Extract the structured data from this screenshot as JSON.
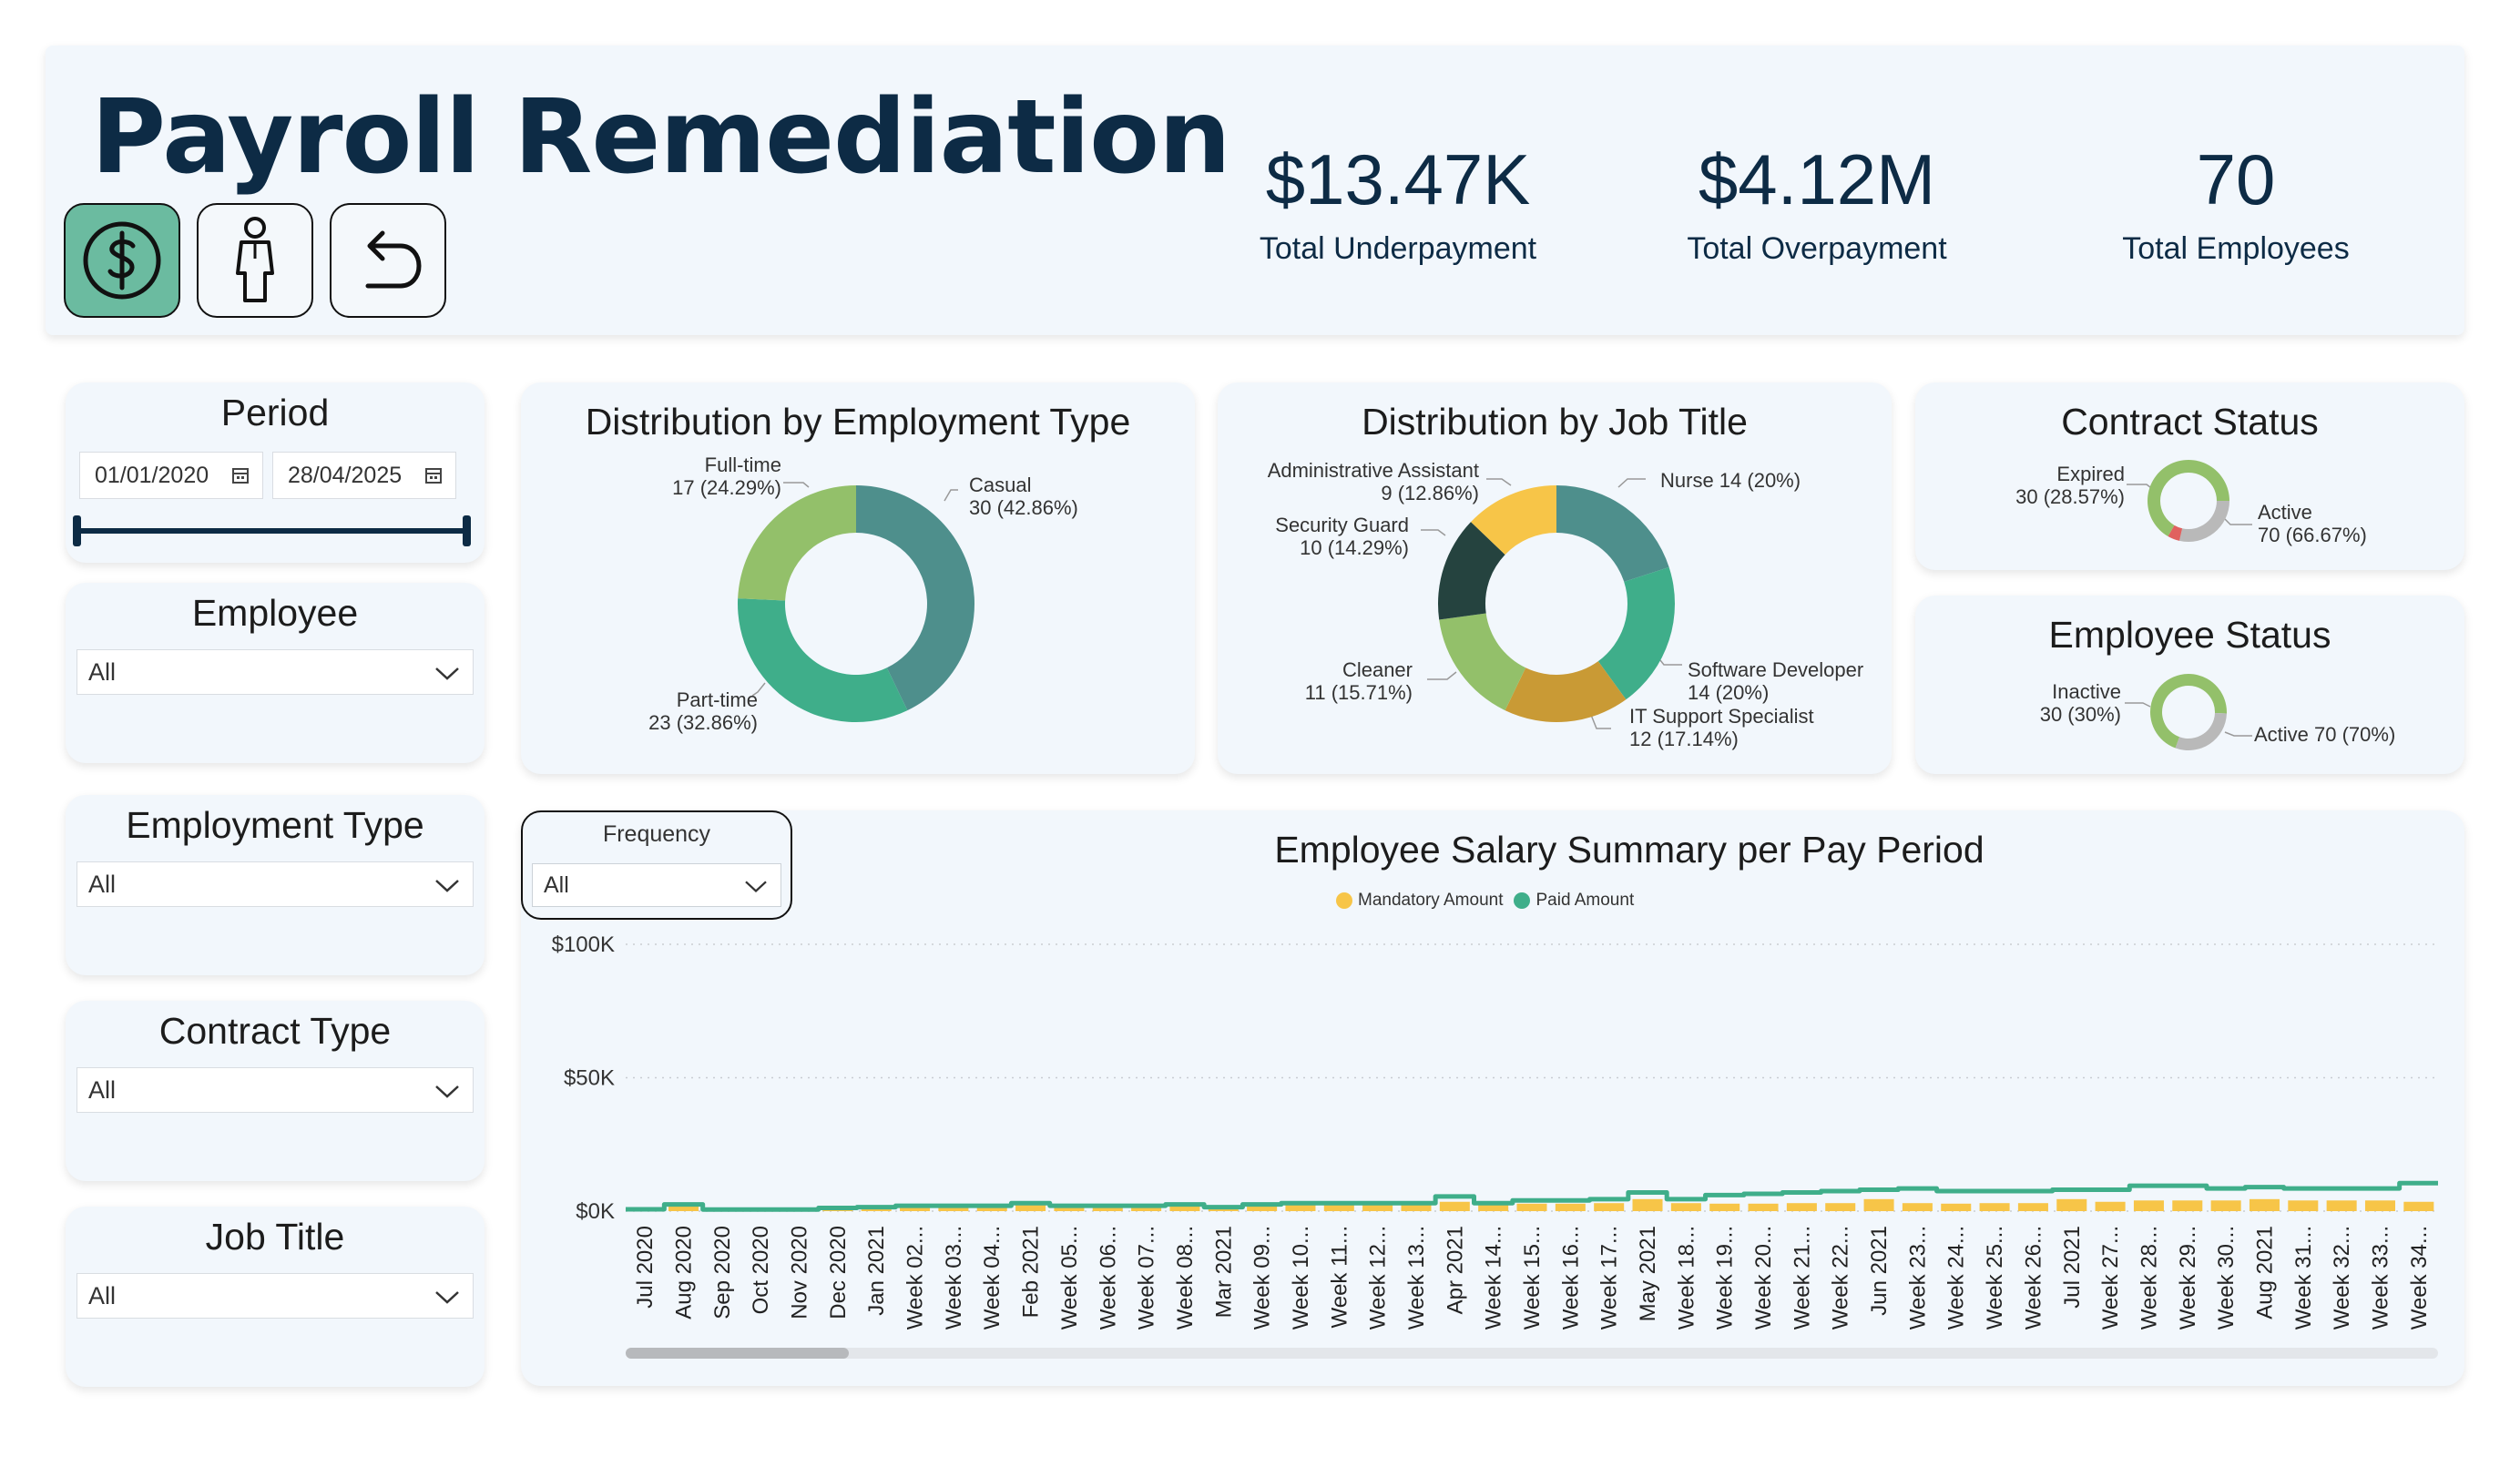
{
  "header": {
    "title": "Payroll Remediation",
    "kpis": [
      {
        "value": "$13.47K",
        "label": "Total Underpayment"
      },
      {
        "value": "$4.12M",
        "label": "Total Overpayment"
      },
      {
        "value": "70",
        "label": "Total Employees"
      }
    ],
    "nav_icons": [
      "dollar-icon",
      "person-icon",
      "back-arrow-icon"
    ]
  },
  "slicers": {
    "period": {
      "title": "Period",
      "start": "01/01/2020",
      "end": "28/04/2025"
    },
    "employee": {
      "title": "Employee",
      "value": "All"
    },
    "employment_type": {
      "title": "Employment Type",
      "value": "All"
    },
    "contract_type": {
      "title": "Contract Type",
      "value": "All"
    },
    "job_title": {
      "title": "Job Title",
      "value": "All"
    },
    "frequency": {
      "title": "Frequency",
      "value": "All"
    }
  },
  "colors": {
    "teal_dark": "#4e8f8c",
    "teal": "#3fae8a",
    "green_light": "#93c06a",
    "yellow": "#f7c548",
    "gold": "#c99a35",
    "dark": "#25433f",
    "grey": "#b9b9b9",
    "red": "#e0615f",
    "navy": "#0d2b45"
  },
  "chart_data": [
    {
      "type": "pie",
      "title": "Distribution by Employment Type",
      "slices": [
        {
          "label": "Casual",
          "value": 30,
          "pct": "30 (42.86%)",
          "color": "#4e8f8c"
        },
        {
          "label": "Part-time",
          "value": 23,
          "pct": "23 (32.86%)",
          "color": "#3fae8a"
        },
        {
          "label": "Full-time",
          "value": 17,
          "pct": "17 (24.29%)",
          "color": "#93c06a"
        }
      ]
    },
    {
      "type": "pie",
      "title": "Distribution by Job Title",
      "slices": [
        {
          "label": "Nurse",
          "value": 14,
          "pct": "Nurse 14 (20%)",
          "color": "#4e8f8c"
        },
        {
          "label": "Software Developer",
          "value": 14,
          "pct": "14 (20%)",
          "color": "#3fae8a"
        },
        {
          "label": "IT Support Specialist",
          "value": 12,
          "pct": "12 (17.14%)",
          "color": "#c99a35"
        },
        {
          "label": "Cleaner",
          "value": 11,
          "pct": "11 (15.71%)",
          "color": "#93c06a"
        },
        {
          "label": "Security Guard",
          "value": 10,
          "pct": "10 (14.29%)",
          "color": "#25433f"
        },
        {
          "label": "Administrative Assistant",
          "value": 9,
          "pct": "9 (12.86%)",
          "color": "#f7c548"
        }
      ]
    },
    {
      "type": "pie",
      "title": "Contract Status",
      "slices": [
        {
          "label": "Active",
          "value": 70,
          "pct": "70 (66.67%)",
          "color": "#93c06a"
        },
        {
          "label": "Expired",
          "value": 30,
          "pct": "30 (28.57%)",
          "color": "#b9b9b9"
        },
        {
          "label": "",
          "value": 5,
          "pct": "",
          "color": "#e0615f"
        }
      ]
    },
    {
      "type": "pie",
      "title": "Employee Status",
      "slices": [
        {
          "label": "Active",
          "value": 70,
          "pct": "Active 70 (70%)",
          "color": "#93c06a"
        },
        {
          "label": "Inactive",
          "value": 30,
          "pct": "30 (30%)",
          "color": "#b9b9b9"
        }
      ]
    },
    {
      "type": "bar",
      "title": "Employee Salary Summary per Pay Period",
      "legend": [
        "Mandatory Amount",
        "Paid Amount"
      ],
      "y_ticks": [
        "$100K",
        "$50K",
        "$0K"
      ],
      "ylim": [
        0,
        100000
      ],
      "categories": [
        "Jul 2020",
        "Aug 2020",
        "Sep 2020",
        "Oct 2020",
        "Nov 2020",
        "Dec 2020",
        "Jan 2021",
        "Week 02...",
        "Week 03...",
        "Week 04...",
        "Feb 2021",
        "Week 05...",
        "Week 06...",
        "Week 07...",
        "Week 08...",
        "Mar 2021",
        "Week 09...",
        "Week 10...",
        "Week 11...",
        "Week 12...",
        "Week 13...",
        "Apr 2021",
        "Week 14...",
        "Week 15...",
        "Week 16...",
        "Week 17...",
        "May 2021",
        "Week 18...",
        "Week 19...",
        "Week 20...",
        "Week 21...",
        "Week 22...",
        "Jun 2021",
        "Week 23...",
        "Week 24...",
        "Week 25...",
        "Week 26...",
        "Jul 2021",
        "Week 27...",
        "Week 28...",
        "Week 29...",
        "Week 30...",
        "Aug 2021",
        "Week 31...",
        "Week 32...",
        "Week 33...",
        "Week 34..."
      ],
      "series": [
        {
          "name": "Mandatory Amount",
          "color": "#f7c548",
          "values": [
            600,
            2500,
            500,
            500,
            500,
            1000,
            1200,
            1500,
            1500,
            1500,
            2200,
            1500,
            1500,
            1500,
            2000,
            1200,
            2000,
            2300,
            2300,
            2300,
            2300,
            3500,
            2300,
            2800,
            2800,
            3000,
            4500,
            3000,
            2800,
            2800,
            3000,
            3000,
            4500,
            3000,
            2800,
            3000,
            3000,
            4500,
            3500,
            4000,
            4000,
            4000,
            4500,
            4000,
            4000,
            4000,
            3500
          ]
        },
        {
          "name": "Paid Amount",
          "color": "#3fae8a",
          "values": [
            700,
            2500,
            600,
            600,
            600,
            1200,
            1500,
            2000,
            2000,
            2000,
            3000,
            2000,
            2000,
            2000,
            2500,
            1500,
            2500,
            3000,
            3000,
            3000,
            3000,
            5500,
            3000,
            4000,
            4000,
            4500,
            7000,
            4500,
            6000,
            6500,
            7000,
            7500,
            8000,
            8500,
            7500,
            7500,
            7500,
            8000,
            8000,
            9500,
            9500,
            8500,
            9000,
            8500,
            8500,
            8500,
            10500
          ]
        }
      ]
    }
  ]
}
